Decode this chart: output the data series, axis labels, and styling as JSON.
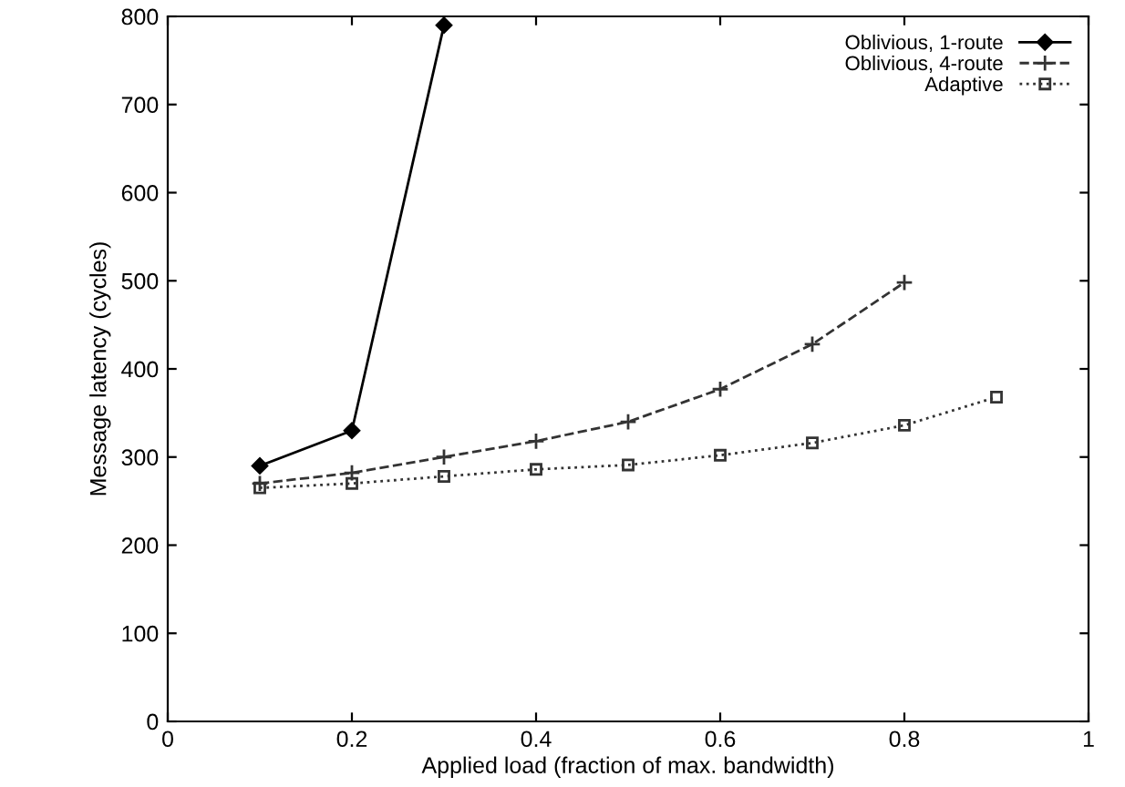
{
  "chart_data": {
    "type": "line",
    "xlabel": "Applied load (fraction of max. bandwidth)",
    "ylabel": "Message latency (cycles)",
    "xlim": [
      0,
      1
    ],
    "xticks": [
      0,
      0.2,
      0.4,
      0.6,
      0.8,
      1
    ],
    "ylim": [
      0,
      800
    ],
    "yticks": [
      0,
      100,
      200,
      300,
      400,
      500,
      600,
      700,
      800
    ],
    "grid": false,
    "legend": "top right",
    "series": [
      {
        "name": "Oblivious, 1-route",
        "color": "#000000",
        "marker": "diamond",
        "line_style": "solid",
        "x": [
          0.1,
          0.2,
          0.3
        ],
        "values": [
          290,
          330,
          790
        ]
      },
      {
        "name": "Oblivious, 4-route",
        "color": "#333333",
        "marker": "cross",
        "line_style": "dashed",
        "x": [
          0.1,
          0.2,
          0.3,
          0.4,
          0.5,
          0.6,
          0.7,
          0.8
        ],
        "values": [
          270,
          282,
          300,
          318,
          340,
          377,
          428,
          498
        ]
      },
      {
        "name": "Adaptive",
        "color": "#333333",
        "marker": "square",
        "line_style": "dotted",
        "x": [
          0.1,
          0.2,
          0.3,
          0.4,
          0.5,
          0.6,
          0.7,
          0.8,
          0.9
        ],
        "values": [
          265,
          270,
          278,
          286,
          291,
          302,
          316,
          336,
          368
        ]
      }
    ]
  }
}
